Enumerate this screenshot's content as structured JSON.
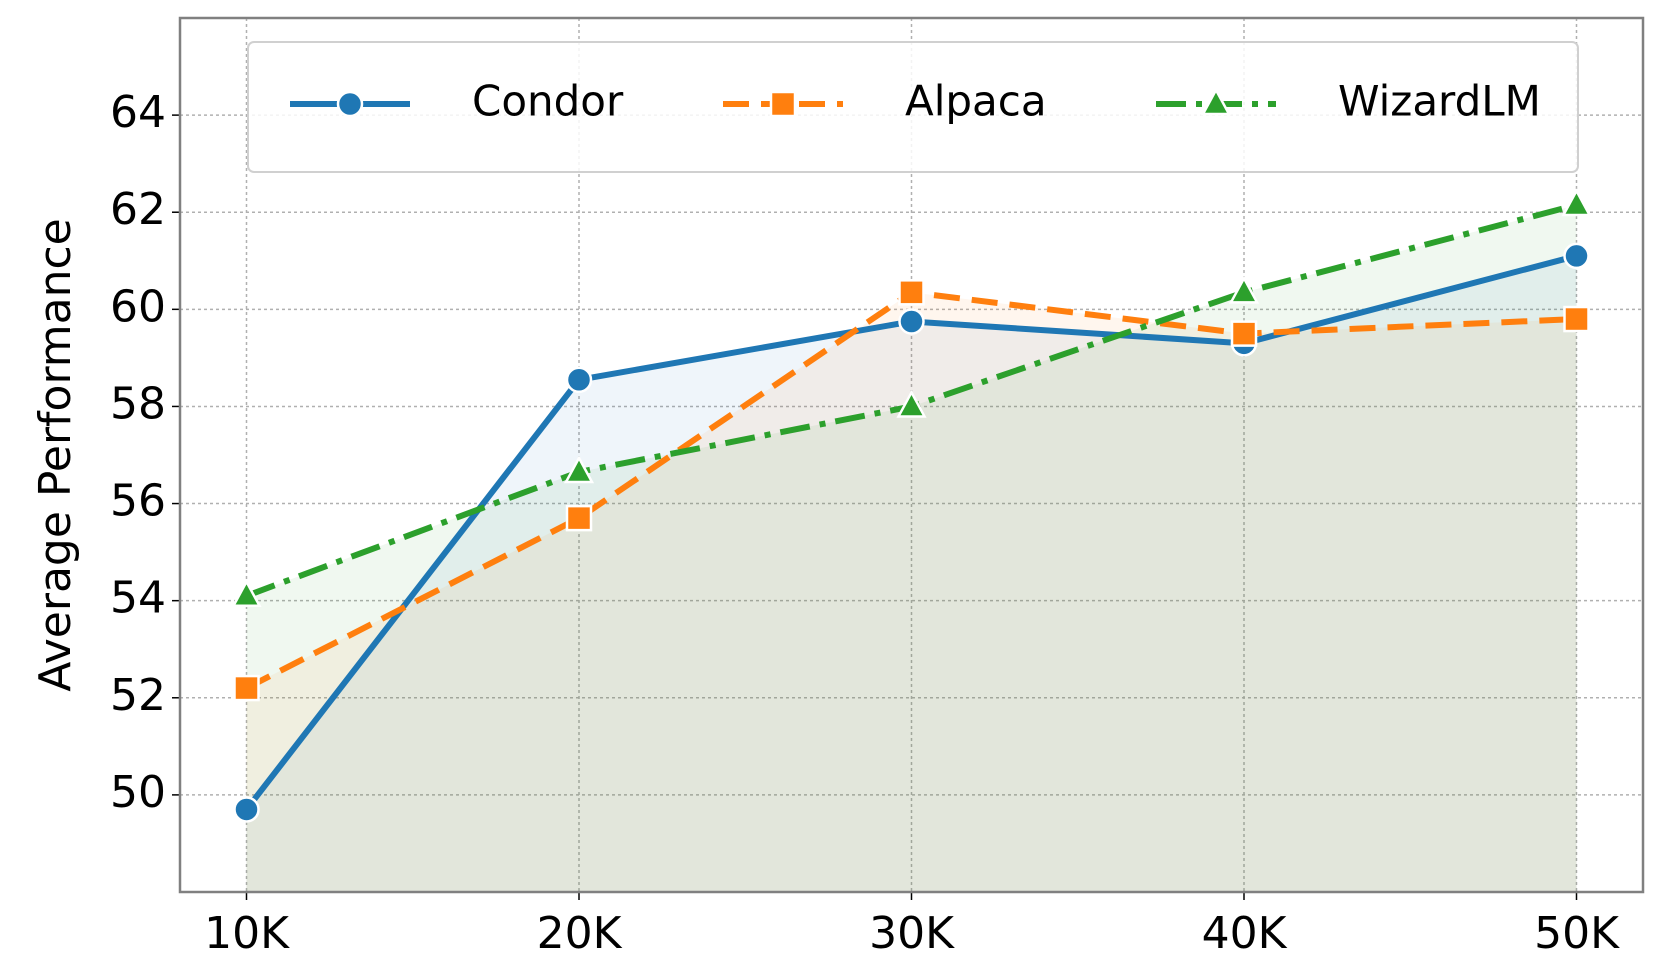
{
  "chart_data": {
    "type": "line",
    "ylabel": "Average Performance",
    "x": [
      10000,
      20000,
      30000,
      40000,
      50000
    ],
    "xlim": [
      8000,
      52000
    ],
    "xticks": [
      {
        "value": 10000,
        "label": "10K"
      },
      {
        "value": 20000,
        "label": "20K"
      },
      {
        "value": 30000,
        "label": "30K"
      },
      {
        "value": 40000,
        "label": "40K"
      },
      {
        "value": 50000,
        "label": "50K"
      }
    ],
    "ylim": [
      48,
      66
    ],
    "yticks": [
      50,
      52,
      54,
      56,
      58,
      60,
      62,
      64
    ],
    "grid": true,
    "legend": "top",
    "series": [
      {
        "name": "Condor",
        "color": "#1f77b4",
        "marker": "circle",
        "linestyle": "solid",
        "values": [
          49.7,
          58.55,
          59.75,
          59.3,
          61.1
        ]
      },
      {
        "name": "Alpaca",
        "color": "#ff7f0e",
        "marker": "square",
        "linestyle": "dashed",
        "values": [
          52.2,
          55.7,
          60.35,
          59.5,
          59.8
        ]
      },
      {
        "name": "WizardLM",
        "color": "#2ca02c",
        "marker": "triangle",
        "linestyle": "dashdot",
        "values": [
          54.1,
          56.65,
          58.0,
          60.35,
          62.15
        ]
      }
    ]
  }
}
